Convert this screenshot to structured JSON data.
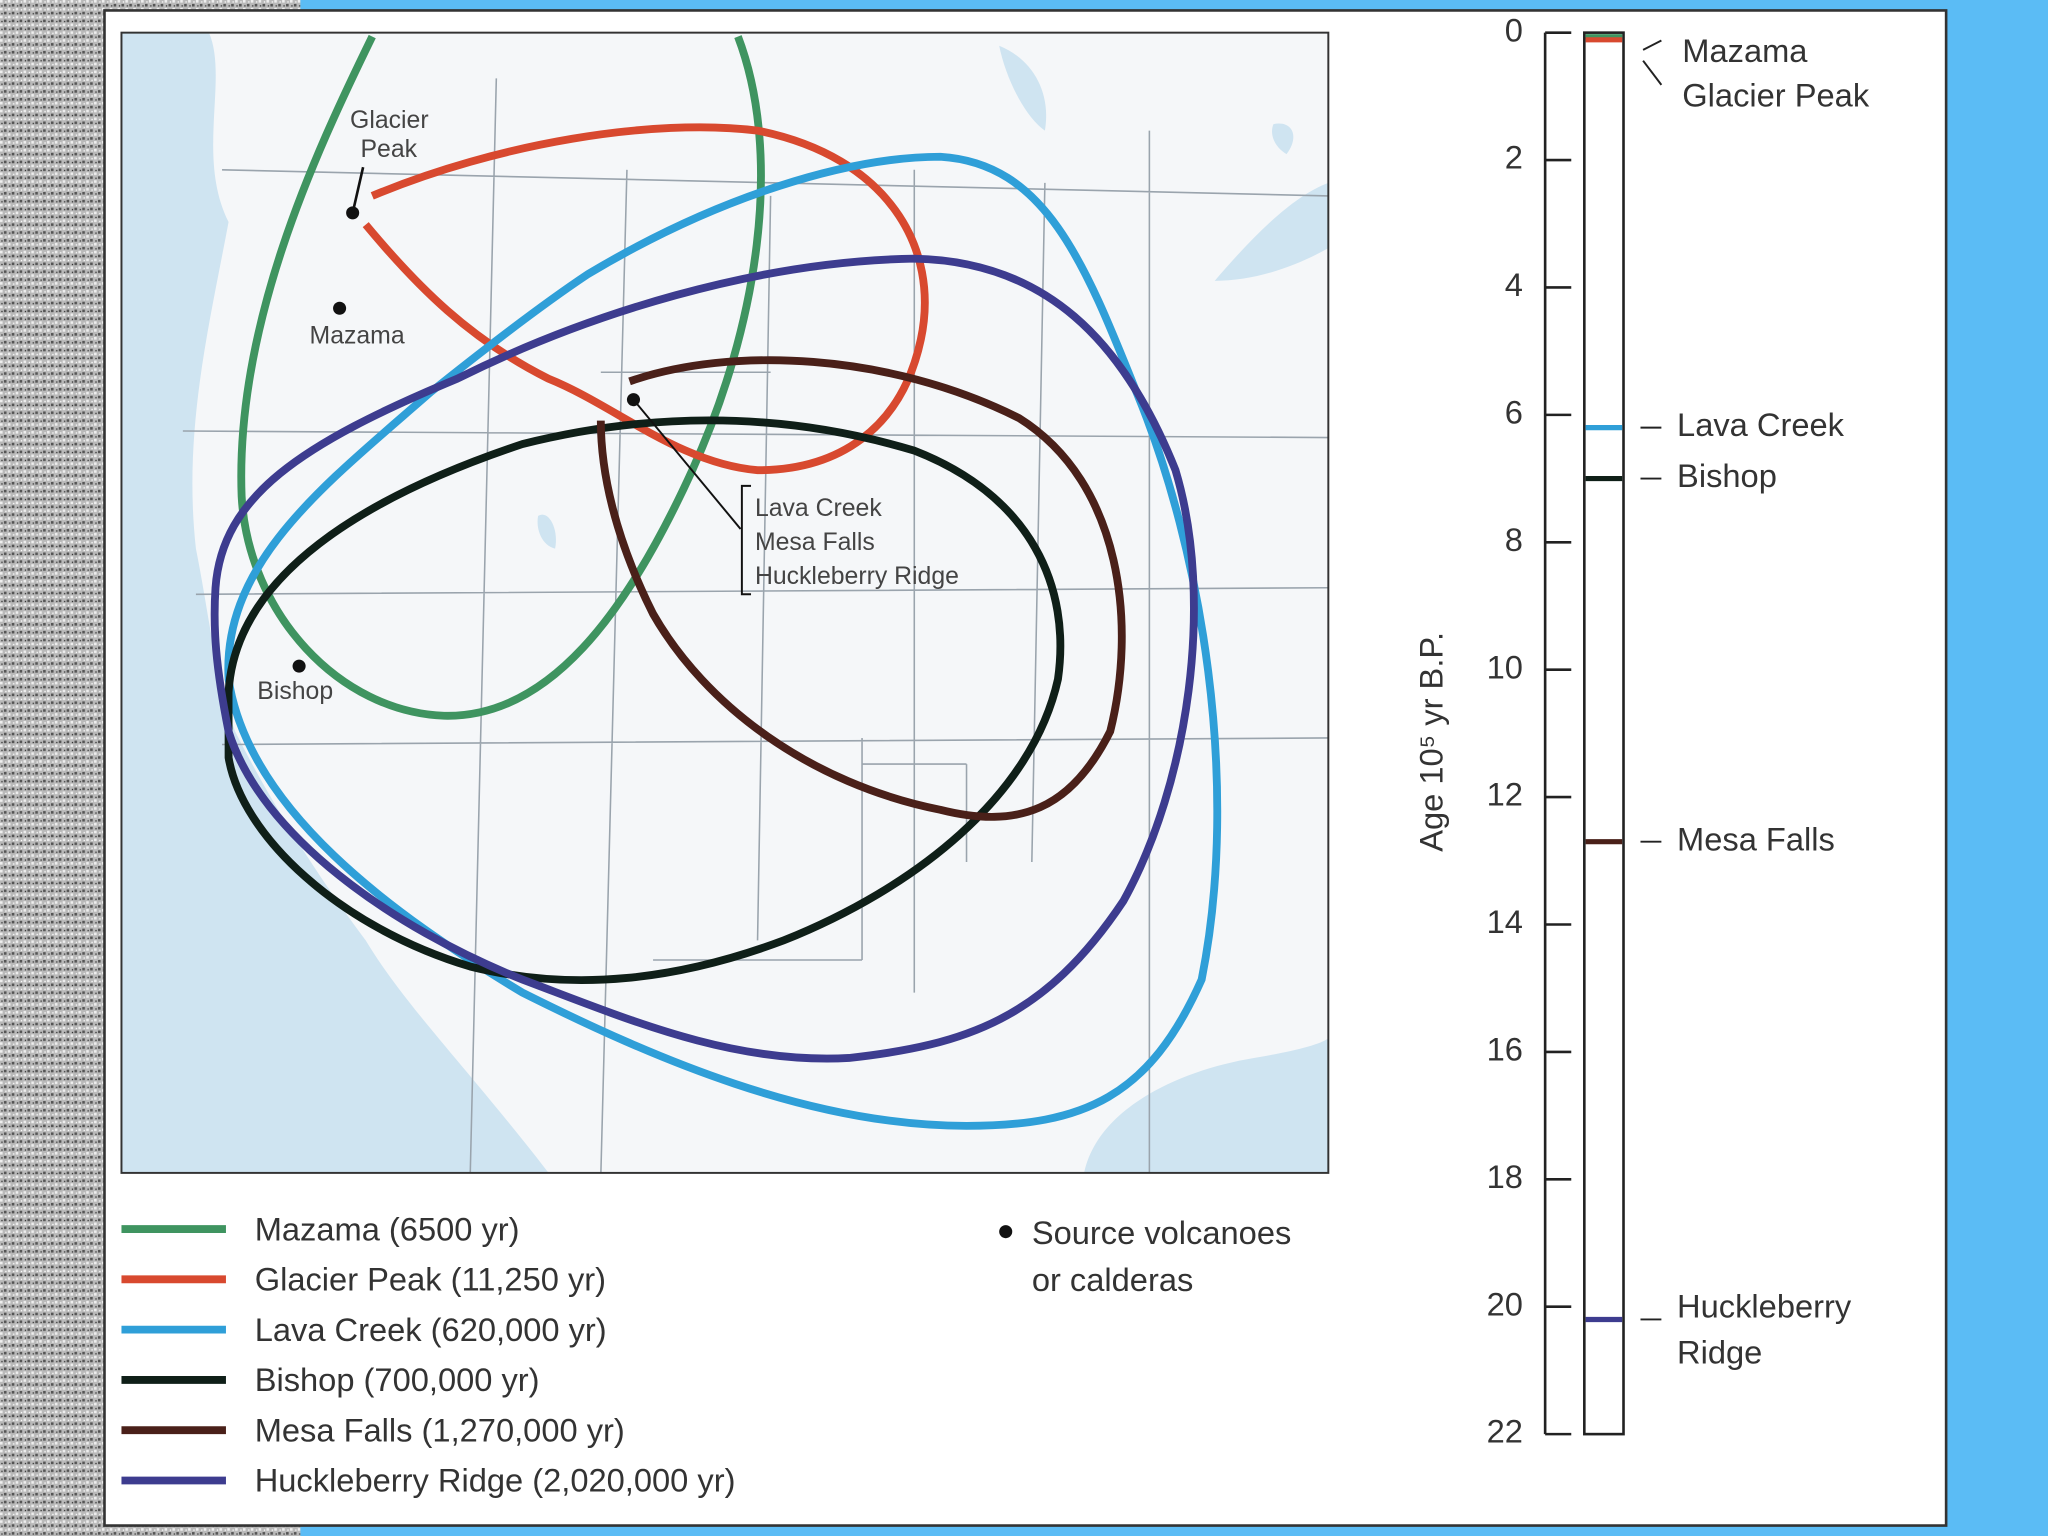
{
  "map_labels": {
    "glacier_peak": [
      "Glacier",
      "Peak"
    ],
    "mazama": "Mazama",
    "bishop": "Bishop",
    "yellowstone": [
      "Lava Creek",
      "Mesa Falls",
      "Huckleberry Ridge"
    ]
  },
  "legend": [
    {
      "name": "Mazama (6500 yr)",
      "color": "#3f9460"
    },
    {
      "name": "Glacier Peak (11,250 yr)",
      "color": "#d8492f"
    },
    {
      "name": "Lava Creek (620,000 yr)",
      "color": "#2f9fd8"
    },
    {
      "name": "Bishop (700,000 yr)",
      "color": "#0f1f18"
    },
    {
      "name": "Mesa Falls (1,270,000 yr)",
      "color": "#4a2019"
    },
    {
      "name": "Huckleberry Ridge (2,020,000 yr)",
      "color": "#3d3c8f"
    }
  ],
  "source_note": [
    "Source volcanoes",
    "or calderas"
  ],
  "timeline": {
    "axis_label": "Age 10⁵ yr B.P.",
    "ylim": [
      0,
      22
    ],
    "yticks": [
      0,
      2,
      4,
      6,
      8,
      10,
      12,
      14,
      16,
      18,
      20,
      22
    ],
    "events": [
      {
        "label": [
          "Mazama"
        ],
        "value": 0.065,
        "color": "#3f9460"
      },
      {
        "label": [
          "Glacier Peak"
        ],
        "value": 0.1125,
        "color": "#d8492f"
      },
      {
        "label": [
          "Lava Creek"
        ],
        "value": 6.2,
        "color": "#2f9fd8"
      },
      {
        "label": [
          "Bishop"
        ],
        "value": 7.0,
        "color": "#0f1f18"
      },
      {
        "label": [
          "Mesa Falls"
        ],
        "value": 12.7,
        "color": "#4a2019"
      },
      {
        "label": [
          "Huckleberry",
          "Ridge"
        ],
        "value": 20.2,
        "color": "#3d3c8f"
      }
    ]
  }
}
